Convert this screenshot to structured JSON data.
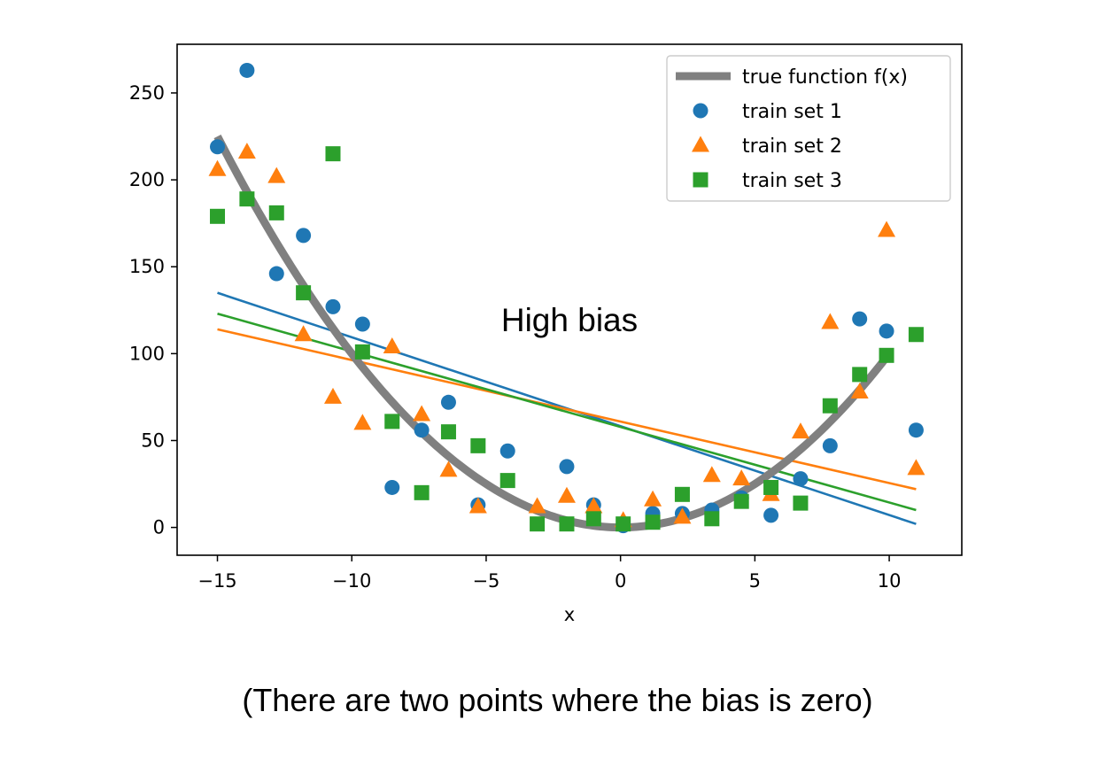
{
  "caption": "(There are two points where the bias is zero)",
  "chart_data": {
    "type": "scatter",
    "title": "",
    "xlabel": "x",
    "ylabel": "",
    "xlim": [
      -16.5,
      12.7
    ],
    "ylim": [
      -16,
      278
    ],
    "xticks": [
      -15,
      -10,
      -5,
      0,
      5,
      10
    ],
    "yticks": [
      0,
      50,
      100,
      150,
      200,
      250
    ],
    "grid": false,
    "legend_position": "top-right",
    "annotation": "High bias",
    "colors": {
      "true_function": "#808080",
      "train_set_1": "#1f77b4",
      "train_set_2": "#ff7f0e",
      "train_set_3": "#2ca02c"
    },
    "true_function": {
      "name": "true function f(x)",
      "formula": "x^2",
      "x_range": [
        -15,
        10
      ]
    },
    "series": [
      {
        "name": "train set 1",
        "marker": "circle",
        "x": [
          -15,
          -13.9,
          -12.8,
          -11.8,
          -10.7,
          -9.6,
          -8.5,
          -7.4,
          -6.4,
          -5.3,
          -4.2,
          -2.0,
          -1.0,
          0.1,
          1.2,
          2.3,
          3.4,
          4.5,
          5.6,
          6.7,
          7.8,
          8.9,
          9.9,
          11.0
        ],
        "y": [
          219,
          263,
          146,
          168,
          127,
          117,
          23,
          56,
          72,
          13,
          44,
          35,
          13,
          1,
          8,
          8,
          10,
          17,
          7,
          28,
          47,
          120,
          113,
          56
        ],
        "fit_line": {
          "x": [
            -15,
            11
          ],
          "y": [
            135,
            2
          ]
        }
      },
      {
        "name": "train set 2",
        "marker": "triangle",
        "x": [
          -15,
          -13.9,
          -12.8,
          -11.8,
          -10.7,
          -9.6,
          -8.5,
          -7.4,
          -6.4,
          -5.3,
          -3.1,
          -2.0,
          -1.0,
          0.1,
          1.2,
          2.3,
          3.4,
          4.5,
          5.6,
          6.7,
          7.8,
          8.9,
          9.9,
          11.0
        ],
        "y": [
          206,
          216,
          202,
          111,
          75,
          60,
          104,
          65,
          33,
          12,
          12,
          18,
          12,
          4,
          16,
          6,
          30,
          28,
          19,
          55,
          118,
          78,
          171,
          34
        ],
        "fit_line": {
          "x": [
            -15,
            11
          ],
          "y": [
            114,
            22
          ]
        }
      },
      {
        "name": "train set 3",
        "marker": "square",
        "x": [
          -15,
          -13.9,
          -12.8,
          -11.8,
          -10.7,
          -9.6,
          -8.5,
          -7.4,
          -6.4,
          -5.3,
          -4.2,
          -3.1,
          -2.0,
          -1.0,
          0.1,
          1.2,
          2.3,
          3.4,
          4.5,
          5.6,
          6.7,
          7.8,
          8.9,
          9.9,
          11.0
        ],
        "y": [
          179,
          189,
          181,
          135,
          215,
          101,
          61,
          20,
          55,
          47,
          27,
          2,
          2,
          5,
          2,
          3,
          19,
          5,
          15,
          23,
          14,
          70,
          88,
          99,
          111
        ],
        "fit_line": {
          "x": [
            -15,
            11
          ],
          "y": [
            123,
            10
          ]
        }
      }
    ]
  }
}
